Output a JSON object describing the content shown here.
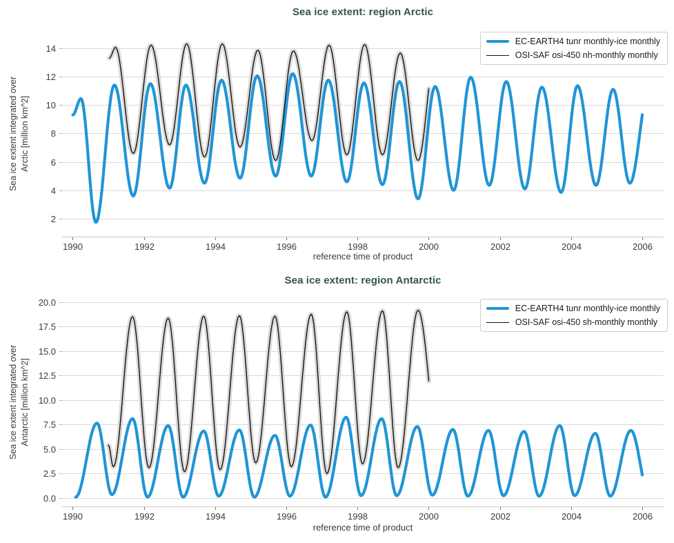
{
  "colors": {
    "accent_blue": "#2095d6",
    "series_black": "#111111",
    "band_gray": "#dadada",
    "grid": "#d9d9d9",
    "spine": "#c9c9c9",
    "title_teal": "#315451",
    "text": "#3a3a3a"
  },
  "chart_data": [
    {
      "type": "line",
      "title": "Sea ice extent: region Arctic",
      "xlabel": "reference time of product",
      "ylabel": "Sea ice extent integrated over\nArctic [million km^2]",
      "x_ticks": [
        1990,
        1992,
        1994,
        1996,
        1998,
        2000,
        2002,
        2004,
        2006
      ],
      "y_tick_values": [
        2,
        4,
        6,
        8,
        10,
        12,
        14
      ],
      "y_tick_labels": [
        "2",
        "4",
        "6",
        "8",
        "10",
        "12",
        "14"
      ],
      "xlim": [
        1989.7,
        2006.6
      ],
      "ylim": [
        0.74,
        15.2
      ],
      "grid": true,
      "legend_position": "upper right",
      "series": [
        {
          "name": "EC-EARTH4 tunr monthly-ice monthly",
          "color": "#2095d6",
          "line_width": 4.2,
          "x_end_clip": 2006.0,
          "points": [
            [
              1990.0,
              9.3
            ],
            [
              1990.23,
              10.45
            ],
            [
              1990.65,
              1.75
            ],
            [
              1991.17,
              11.4
            ],
            [
              1991.7,
              3.6
            ],
            [
              1992.18,
              11.5
            ],
            [
              1992.72,
              4.15
            ],
            [
              1993.18,
              11.4
            ],
            [
              1993.7,
              4.5
            ],
            [
              1994.18,
              11.75
            ],
            [
              1994.7,
              4.85
            ],
            [
              1995.18,
              12.05
            ],
            [
              1995.7,
              5.0
            ],
            [
              1996.18,
              12.2
            ],
            [
              1996.7,
              5.0
            ],
            [
              1997.18,
              11.75
            ],
            [
              1997.7,
              4.6
            ],
            [
              1998.18,
              11.55
            ],
            [
              1998.7,
              4.4
            ],
            [
              1999.18,
              11.65
            ],
            [
              1999.7,
              3.4
            ],
            [
              2000.18,
              11.3
            ],
            [
              2000.7,
              4.0
            ],
            [
              2001.18,
              11.95
            ],
            [
              2001.7,
              4.35
            ],
            [
              2002.18,
              11.65
            ],
            [
              2002.7,
              4.1
            ],
            [
              2003.18,
              11.25
            ],
            [
              2003.72,
              3.85
            ],
            [
              2004.18,
              11.35
            ],
            [
              2004.7,
              4.35
            ],
            [
              2005.18,
              11.1
            ],
            [
              2005.65,
              4.5
            ],
            [
              2006.2,
              11.3
            ]
          ]
        },
        {
          "name": "OSI-SAF osi-450 nh-monthly monthly",
          "color": "#111111",
          "line_width": 1.4,
          "band_color": "#dadada",
          "band_width": 7,
          "x_end_clip": 2000.0,
          "points": [
            [
              1991.03,
              13.3
            ],
            [
              1991.2,
              14.05
            ],
            [
              1991.7,
              6.6
            ],
            [
              1992.2,
              14.2
            ],
            [
              1992.72,
              7.2
            ],
            [
              1993.2,
              14.3
            ],
            [
              1993.7,
              6.35
            ],
            [
              1994.2,
              14.3
            ],
            [
              1994.7,
              7.05
            ],
            [
              1995.2,
              13.85
            ],
            [
              1995.7,
              6.1
            ],
            [
              1996.2,
              13.8
            ],
            [
              1996.72,
              7.5
            ],
            [
              1997.2,
              14.2
            ],
            [
              1997.7,
              6.5
            ],
            [
              1998.2,
              14.25
            ],
            [
              1998.7,
              6.5
            ],
            [
              1999.2,
              13.65
            ],
            [
              1999.7,
              6.1
            ],
            [
              2000.2,
              13.8
            ]
          ]
        }
      ]
    },
    {
      "type": "line",
      "title": "Sea ice extent: region Antarctic",
      "xlabel": "reference time of product",
      "ylabel": "Sea ice extent integrated over\nAntarctic [million km^2]",
      "x_ticks": [
        1990,
        1992,
        1994,
        1996,
        1998,
        2000,
        2002,
        2004,
        2006
      ],
      "y_tick_values": [
        0,
        2.5,
        5,
        7.5,
        10,
        12.5,
        15,
        17.5,
        20
      ],
      "y_tick_labels": [
        "0.0",
        "2.5",
        "5.0",
        "7.5",
        "10.0",
        "12.5",
        "15.0",
        "17.5",
        "20.0"
      ],
      "xlim": [
        1989.7,
        2006.6
      ],
      "ylim": [
        -0.85,
        20.4
      ],
      "grid": true,
      "legend_position": "upper right",
      "series": [
        {
          "name": "EC-EARTH4 tunr monthly-ice monthly",
          "color": "#2095d6",
          "line_width": 4.2,
          "x_end_clip": 2006.0,
          "points": [
            [
              1990.08,
              0.1
            ],
            [
              1990.68,
              7.65
            ],
            [
              1991.1,
              0.35
            ],
            [
              1991.68,
              8.1
            ],
            [
              1992.1,
              0.1
            ],
            [
              1992.68,
              7.4
            ],
            [
              1993.1,
              0.1
            ],
            [
              1993.68,
              6.85
            ],
            [
              1994.1,
              0.2
            ],
            [
              1994.68,
              6.95
            ],
            [
              1995.1,
              0.1
            ],
            [
              1995.68,
              6.4
            ],
            [
              1996.1,
              0.2
            ],
            [
              1996.68,
              7.45
            ],
            [
              1997.1,
              0.1
            ],
            [
              1997.68,
              8.25
            ],
            [
              1998.1,
              0.25
            ],
            [
              1998.68,
              8.1
            ],
            [
              1999.1,
              0.25
            ],
            [
              1999.68,
              7.3
            ],
            [
              2000.1,
              0.3
            ],
            [
              2000.68,
              7.0
            ],
            [
              2001.1,
              0.2
            ],
            [
              2001.68,
              6.9
            ],
            [
              2002.1,
              0.25
            ],
            [
              2002.68,
              6.8
            ],
            [
              2003.1,
              0.2
            ],
            [
              2003.68,
              7.4
            ],
            [
              2004.1,
              0.25
            ],
            [
              2004.68,
              6.6
            ],
            [
              2005.1,
              0.2
            ],
            [
              2005.68,
              6.9
            ],
            [
              2006.2,
              0.2
            ]
          ]
        },
        {
          "name": "OSI-SAF osi-450 sh-monthly monthly",
          "color": "#111111",
          "line_width": 1.4,
          "band_color": "#dadada",
          "band_width": 7,
          "x_end_clip": 2000.0,
          "points": [
            [
              1991.0,
              5.4
            ],
            [
              1991.14,
              3.2
            ],
            [
              1991.68,
              18.5
            ],
            [
              1992.14,
              3.1
            ],
            [
              1992.68,
              18.35
            ],
            [
              1993.14,
              2.7
            ],
            [
              1993.68,
              18.55
            ],
            [
              1994.14,
              2.9
            ],
            [
              1994.68,
              18.6
            ],
            [
              1995.14,
              3.6
            ],
            [
              1995.68,
              18.55
            ],
            [
              1996.14,
              3.2
            ],
            [
              1996.7,
              18.75
            ],
            [
              1997.14,
              2.5
            ],
            [
              1997.7,
              19.0
            ],
            [
              1998.14,
              3.5
            ],
            [
              1998.7,
              19.1
            ],
            [
              1999.14,
              3.1
            ],
            [
              1999.7,
              19.15
            ],
            [
              2000.35,
              2.8
            ]
          ]
        }
      ]
    }
  ]
}
